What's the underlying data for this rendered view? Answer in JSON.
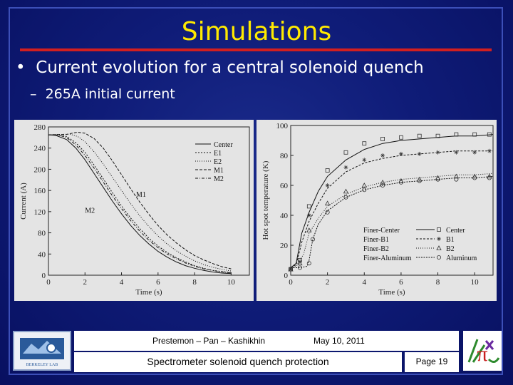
{
  "slide": {
    "title": "Simulations",
    "bullet1": "Current evolution for a central solenoid quench",
    "bullet2": "265A initial current",
    "colors": {
      "background": "#0f1c78",
      "title": "#ffea00",
      "rule": "#d21f1f",
      "text": "#ffffff"
    }
  },
  "footer": {
    "authors": "Prestemon – Pan – Kashikhin",
    "date": "May 10, 2011",
    "subject": "Spectrometer solenoid quench protection",
    "page": "Page 19",
    "logo_left": "BERKELEY LAB",
    "logo_left_icon": "berkeley-lab-logo-icon",
    "logo_right_icon": "mice-pi-logo-icon"
  },
  "chart_data": [
    {
      "type": "line",
      "xlabel": "Time (s)",
      "ylabel": "Current (A)",
      "xlim": [
        0,
        11
      ],
      "ylim": [
        0,
        280
      ],
      "xticks": [
        0,
        2,
        4,
        6,
        8,
        10
      ],
      "yticks": [
        0,
        40,
        80,
        120,
        160,
        200,
        240,
        280
      ],
      "legend_position": "top-right",
      "annotations": [
        "M1",
        "M2"
      ],
      "series": [
        {
          "name": "Center",
          "x": [
            0,
            0.4,
            1,
            1.5,
            2,
            2.5,
            3,
            3.5,
            4,
            4.5,
            5,
            5.5,
            6,
            6.5,
            7,
            7.5,
            8,
            8.5,
            9,
            9.5,
            10
          ],
          "values": [
            265,
            264,
            256,
            240,
            218,
            192,
            166,
            140,
            116,
            94,
            75,
            59,
            45,
            34,
            25,
            18,
            13,
            9,
            6,
            4,
            3
          ]
        },
        {
          "name": "E1",
          "x": [
            0,
            0.5,
            1,
            1.5,
            2,
            2.5,
            3,
            3.5,
            4,
            4.5,
            5,
            5.5,
            6,
            6.5,
            7,
            7.5,
            8,
            8.5,
            9,
            9.5,
            10
          ],
          "values": [
            265,
            265,
            262,
            250,
            232,
            208,
            182,
            156,
            131,
            108,
            88,
            70,
            55,
            43,
            33,
            25,
            18,
            13,
            9,
            7,
            5
          ]
        },
        {
          "name": "E2",
          "x": [
            0,
            0.8,
            1.2,
            1.6,
            2,
            2.5,
            3,
            3.5,
            4,
            4.5,
            5,
            5.5,
            6,
            6.5,
            7,
            7.5,
            8,
            8.5,
            9,
            9.5,
            10
          ],
          "values": [
            265,
            266,
            266,
            262,
            252,
            233,
            210,
            185,
            160,
            135,
            112,
            92,
            74,
            59,
            46,
            36,
            27,
            20,
            15,
            11,
            8
          ]
        },
        {
          "name": "M1",
          "x": [
            0,
            1,
            1.6,
            2,
            2.5,
            3,
            3.5,
            4,
            4.5,
            5,
            5.5,
            6,
            6.5,
            7,
            7.5,
            8,
            8.5,
            9,
            9.5,
            10
          ],
          "values": [
            265,
            266,
            270,
            268,
            258,
            240,
            216,
            190,
            163,
            138,
            115,
            94,
            76,
            61,
            48,
            37,
            29,
            22,
            16,
            12
          ]
        },
        {
          "name": "M2",
          "x": [
            0,
            0.5,
            1,
            1.5,
            2,
            2.5,
            3,
            3.5,
            4,
            4.5,
            5,
            5.5,
            6,
            6.5,
            7,
            7.5,
            8,
            8.5,
            9,
            9.5,
            10
          ],
          "values": [
            265,
            265,
            260,
            246,
            226,
            202,
            176,
            150,
            126,
            103,
            83,
            66,
            52,
            40,
            31,
            23,
            17,
            12,
            9,
            6,
            4
          ]
        }
      ]
    },
    {
      "type": "line",
      "xlabel": "Time (s)",
      "ylabel": "Hot spot temperature (K)",
      "xlim": [
        0,
        11
      ],
      "ylim": [
        0,
        100
      ],
      "xticks": [
        0,
        2,
        4,
        6,
        8,
        10
      ],
      "yticks": [
        0,
        20,
        40,
        60,
        80,
        100
      ],
      "legend_position": "bottom-right",
      "series": [
        {
          "name": "Finer-Center",
          "x": [
            0,
            0.3,
            0.6,
            1,
            1.5,
            2,
            3,
            4,
            5,
            6,
            7,
            8,
            9,
            10,
            11
          ],
          "values": [
            5,
            8,
            28,
            42,
            56,
            66,
            77,
            84,
            88,
            90,
            91,
            92,
            93,
            93,
            94
          ]
        },
        {
          "name": "Finer-B1",
          "x": [
            0,
            0.3,
            0.6,
            1,
            1.5,
            2,
            3,
            4,
            5,
            6,
            7,
            8,
            9,
            10,
            11
          ],
          "values": [
            5,
            7,
            22,
            36,
            48,
            58,
            69,
            75,
            78,
            80,
            81,
            82,
            83,
            83,
            83
          ]
        },
        {
          "name": "Finer-B2",
          "x": [
            0,
            0.3,
            0.7,
            1,
            1.5,
            2,
            3,
            4,
            5,
            6,
            7,
            8,
            9,
            10,
            11
          ],
          "values": [
            5,
            6,
            14,
            28,
            38,
            46,
            54,
            59,
            62,
            64,
            65,
            66,
            67,
            67,
            68
          ]
        },
        {
          "name": "Finer-Aluminum",
          "x": [
            0,
            0.5,
            0.9,
            1,
            1.2,
            1.5,
            2,
            3,
            4,
            5,
            6,
            7,
            8,
            9,
            10,
            11
          ],
          "values": [
            5,
            5,
            6,
            10,
            24,
            34,
            43,
            52,
            57,
            60,
            62,
            63,
            64,
            65,
            65,
            66
          ]
        },
        {
          "name": "Center",
          "marker": "square",
          "x": [
            0,
            0.5,
            1,
            2,
            3,
            4,
            5,
            6,
            7,
            8,
            9,
            10,
            10.8
          ],
          "values": [
            4,
            10,
            46,
            70,
            82,
            88,
            91,
            92,
            93,
            93,
            94,
            94,
            94
          ]
        },
        {
          "name": "B1",
          "marker": "star",
          "x": [
            0,
            0.5,
            1,
            2,
            3,
            4,
            5,
            6,
            7,
            8,
            9,
            10,
            10.8
          ],
          "values": [
            4,
            9,
            40,
            60,
            72,
            77,
            80,
            81,
            81,
            82,
            82,
            82,
            83
          ]
        },
        {
          "name": "B2",
          "marker": "triangle",
          "x": [
            0,
            0.5,
            1,
            2,
            3,
            4,
            5,
            6,
            7,
            8,
            9,
            10,
            10.8
          ],
          "values": [
            4,
            8,
            30,
            48,
            56,
            60,
            62,
            63,
            64,
            65,
            66,
            66,
            66
          ]
        },
        {
          "name": "Aluminum",
          "marker": "circle",
          "x": [
            0,
            0.5,
            1,
            1.2,
            2,
            3,
            4,
            5,
            6,
            7,
            8,
            9,
            10,
            10.8
          ],
          "values": [
            4,
            5,
            8,
            24,
            42,
            52,
            57,
            60,
            62,
            63,
            64,
            64,
            65,
            65
          ]
        }
      ]
    }
  ]
}
